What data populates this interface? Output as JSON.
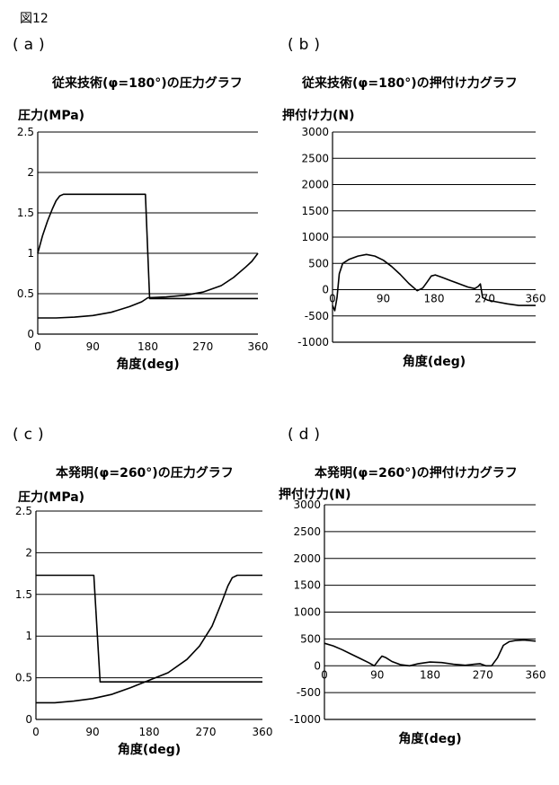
{
  "figure_label": "図12",
  "chart_data": [
    {
      "id": "a",
      "letter": "(a)",
      "type": "line",
      "title": "従来技術(φ=180°)の圧力グラフ",
      "ylabel": "圧力(MPa)",
      "xlabel": "角度(deg)",
      "xlim": [
        0,
        360
      ],
      "ylim": [
        0,
        2.5
      ],
      "xticks": [
        0,
        90,
        180,
        270,
        360
      ],
      "yticks": [
        0,
        0.5,
        1,
        1.5,
        2,
        2.5
      ],
      "ytick_labels": [
        "0",
        "0.5",
        "1",
        "1.5",
        "2",
        "2.5"
      ],
      "xtick_row": "bottom",
      "grid": "horizontal",
      "series": [
        {
          "x": [
            0,
            8,
            16,
            24,
            30,
            36,
            42,
            48,
            170,
            176,
            183,
            210,
            240,
            270,
            300,
            330,
            360
          ],
          "y": [
            1.0,
            1.22,
            1.4,
            1.55,
            1.65,
            1.71,
            1.73,
            1.73,
            1.73,
            1.73,
            0.44,
            0.44,
            0.44,
            0.44,
            0.44,
            0.44,
            0.44
          ]
        },
        {
          "x": [
            0,
            30,
            60,
            90,
            120,
            150,
            170,
            180,
            210,
            240,
            270,
            300,
            320,
            340,
            350,
            360
          ],
          "y": [
            0.2,
            0.2,
            0.21,
            0.23,
            0.27,
            0.34,
            0.4,
            0.45,
            0.46,
            0.48,
            0.52,
            0.6,
            0.7,
            0.83,
            0.9,
            1.0
          ]
        }
      ]
    },
    {
      "id": "b",
      "letter": "(b)",
      "type": "line",
      "title": "従来技術(φ=180°)の押付け力グラフ",
      "ylabel": "押付け力(N)",
      "xlabel": "角度(deg)",
      "xlim": [
        0,
        360
      ],
      "ylim": [
        -1000,
        3000
      ],
      "xticks": [
        0,
        90,
        180,
        270,
        360
      ],
      "yticks": [
        -1000,
        -500,
        0,
        500,
        1000,
        1500,
        2000,
        2500,
        3000
      ],
      "ytick_labels": [
        "-1000",
        "-500",
        "0",
        "500",
        "1000",
        "1500",
        "2000",
        "2500",
        "3000"
      ],
      "xtick_row": "zero",
      "grid": "horizontal",
      "series": [
        {
          "x": [
            0,
            4,
            8,
            12,
            18,
            30,
            45,
            60,
            75,
            90,
            105,
            120,
            135,
            150,
            160,
            168,
            175,
            182,
            195,
            210,
            225,
            240,
            252,
            258,
            262,
            266,
            275,
            290,
            310,
            330,
            350,
            360
          ],
          "y": [
            -300,
            -400,
            -150,
            300,
            500,
            580,
            640,
            670,
            640,
            560,
            440,
            290,
            120,
            -20,
            30,
            150,
            260,
            280,
            230,
            170,
            110,
            50,
            20,
            60,
            110,
            -150,
            -200,
            -230,
            -270,
            -300,
            -300,
            -300
          ]
        }
      ]
    },
    {
      "id": "c",
      "letter": "(c)",
      "type": "line",
      "title": "本発明(φ=260°)の圧力グラフ",
      "ylabel": "圧力(MPa)",
      "xlabel": "角度(deg)",
      "xlim": [
        0,
        360
      ],
      "ylim": [
        0,
        2.5
      ],
      "xticks": [
        0,
        90,
        180,
        270,
        360
      ],
      "yticks": [
        0,
        0.5,
        1,
        1.5,
        2,
        2.5
      ],
      "ytick_labels": [
        "0",
        "0.5",
        "1",
        "1.5",
        "2",
        "2.5"
      ],
      "xtick_row": "bottom",
      "grid": "horizontal",
      "series": [
        {
          "x": [
            0,
            40,
            88,
            92,
            102,
            120,
            150,
            180,
            210,
            240,
            270,
            300,
            330,
            360
          ],
          "y": [
            1.73,
            1.73,
            1.73,
            1.73,
            0.45,
            0.45,
            0.45,
            0.45,
            0.45,
            0.45,
            0.45,
            0.45,
            0.45,
            0.45
          ]
        },
        {
          "x": [
            0,
            30,
            60,
            90,
            120,
            150,
            180,
            210,
            240,
            260,
            280,
            295,
            305,
            312,
            320,
            330,
            360
          ],
          "y": [
            0.2,
            0.2,
            0.22,
            0.25,
            0.3,
            0.38,
            0.47,
            0.56,
            0.72,
            0.88,
            1.12,
            1.4,
            1.6,
            1.7,
            1.73,
            1.73,
            1.73
          ]
        }
      ]
    },
    {
      "id": "d",
      "letter": "(d)",
      "type": "line",
      "title": "本発明(φ=260°)の押付け力グラフ",
      "ylabel": "押付け力(N)",
      "xlabel": "角度(deg)",
      "xlim": [
        0,
        360
      ],
      "ylim": [
        -1000,
        3000
      ],
      "xticks": [
        0,
        90,
        180,
        270,
        360
      ],
      "yticks": [
        -1000,
        -500,
        0,
        500,
        1000,
        1500,
        2000,
        2500,
        3000
      ],
      "ytick_labels": [
        "-1000",
        "-500",
        "0",
        "500",
        "1000",
        "1500",
        "2000",
        "2500",
        "3000"
      ],
      "xtick_row": "zero",
      "grid": "horizontal",
      "series": [
        {
          "x": [
            0,
            15,
            30,
            45,
            60,
            75,
            85,
            92,
            98,
            105,
            115,
            130,
            145,
            160,
            180,
            200,
            220,
            240,
            255,
            265,
            275,
            285,
            295,
            305,
            315,
            325,
            340,
            360
          ],
          "y": [
            420,
            370,
            300,
            220,
            140,
            60,
            0,
            100,
            180,
            150,
            80,
            20,
            0,
            40,
            70,
            60,
            30,
            10,
            30,
            40,
            0,
            0,
            150,
            380,
            450,
            470,
            480,
            460
          ]
        }
      ]
    }
  ]
}
